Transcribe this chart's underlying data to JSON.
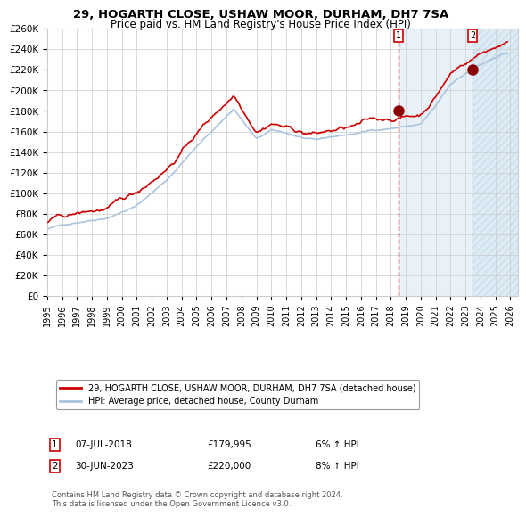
{
  "title": "29, HOGARTH CLOSE, USHAW MOOR, DURHAM, DH7 7SA",
  "subtitle": "Price paid vs. HM Land Registry's House Price Index (HPI)",
  "ylabel": "",
  "ylim": [
    0,
    260000
  ],
  "yticks": [
    0,
    20000,
    40000,
    60000,
    80000,
    100000,
    120000,
    140000,
    160000,
    180000,
    200000,
    220000,
    240000,
    260000
  ],
  "xlim_start": 1995.0,
  "xlim_end": 2026.5,
  "sale1_date": 2018.52,
  "sale1_price": 179995,
  "sale1_label": "07-JUL-2018",
  "sale1_price_label": "£179,995",
  "sale1_hpi": "6% ↑ HPI",
  "sale2_date": 2023.49,
  "sale2_price": 220000,
  "sale2_label": "30-JUN-2023",
  "sale2_price_label": "£220,000",
  "sale2_hpi": "8% ↑ HPI",
  "hpi_line_color": "#aac4dd",
  "price_line_color": "#cc0000",
  "marker_color": "#8B0000",
  "vline1_color": "#cc0000",
  "vline2_color": "#aac4dd",
  "shade_color": "#d0e4f0",
  "grid_color": "#cccccc",
  "bg_color": "#ffffff",
  "legend_label1": "29, HOGARTH CLOSE, USHAW MOOR, DURHAM, DH7 7SA (detached house)",
  "legend_label2": "HPI: Average price, detached house, County Durham",
  "footnote": "Contains HM Land Registry data © Crown copyright and database right 2024.\nThis data is licensed under the Open Government Licence v3.0.",
  "xticklabels": [
    "1995",
    "1996",
    "1997",
    "1998",
    "1999",
    "2000",
    "2001",
    "2002",
    "2003",
    "2004",
    "2005",
    "2006",
    "2007",
    "2008",
    "2009",
    "2010",
    "2011",
    "2012",
    "2013",
    "2014",
    "2015",
    "2016",
    "2017",
    "2018",
    "2019",
    "2020",
    "2021",
    "2022",
    "2023",
    "2024",
    "2025",
    "2026"
  ]
}
